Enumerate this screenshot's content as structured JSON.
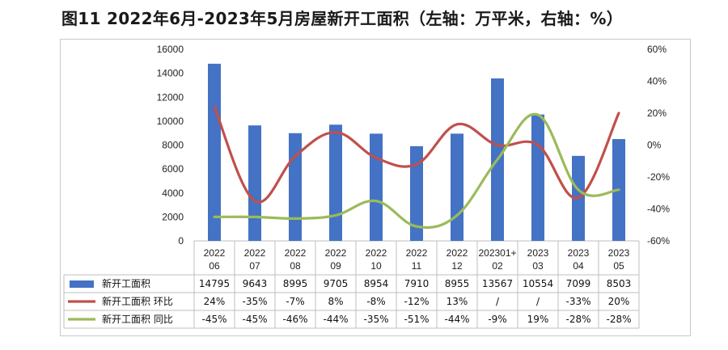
{
  "title": "图11  2022年6月-2023年5月房屋新开工面积（左轴：万平米，右轴：%）",
  "chart_data": {
    "type": "bar",
    "categories": [
      "2022\n06",
      "2022\n07",
      "2022\n08",
      "2022\n09",
      "2022\n10",
      "2022\n11",
      "2022\n12",
      "202301+\n02",
      "2023\n03",
      "2023\n04",
      "2023\n05"
    ],
    "series": [
      {
        "name": "新开工面积",
        "type": "bar",
        "axis": "left",
        "color": "#4472C4",
        "values": [
          14795,
          9643,
          8995,
          9705,
          8954,
          7910,
          8955,
          13567,
          10554,
          7099,
          8503
        ]
      },
      {
        "name": "新开工面积  环比",
        "type": "line",
        "axis": "right",
        "color": "#C0504D",
        "values": [
          24,
          -35,
          -7,
          8,
          -8,
          -12,
          13,
          null,
          null,
          -33,
          20
        ]
      },
      {
        "name": "新开工面积  同比",
        "type": "line",
        "axis": "right",
        "color": "#9BBB59",
        "values": [
          -45,
          -45,
          -46,
          -44,
          -35,
          -51,
          -44,
          -9,
          19,
          -28,
          -28
        ]
      }
    ],
    "table_rows": [
      [
        "14795",
        "9643",
        "8995",
        "9705",
        "8954",
        "7910",
        "8955",
        "13567",
        "10554",
        "7099",
        "8503"
      ],
      [
        "24%",
        "-35%",
        "-7%",
        "8%",
        "-8%",
        "-12%",
        "13%",
        "/",
        "/",
        "-33%",
        "20%"
      ],
      [
        "-45%",
        "-45%",
        "-46%",
        "-44%",
        "-35%",
        "-51%",
        "-44%",
        "-9%",
        "19%",
        "-28%",
        "-28%"
      ]
    ],
    "ylim_left": [
      0,
      16000
    ],
    "yticks_left": [
      "0",
      "2000",
      "4000",
      "6000",
      "8000",
      "10000",
      "12000",
      "14000",
      "16000"
    ],
    "ylim_right": [
      -60,
      60
    ],
    "yticks_right": [
      "-60%",
      "-40%",
      "-20%",
      "0%",
      "20%",
      "40%",
      "60%"
    ],
    "grid": false,
    "legend": "data-table"
  }
}
